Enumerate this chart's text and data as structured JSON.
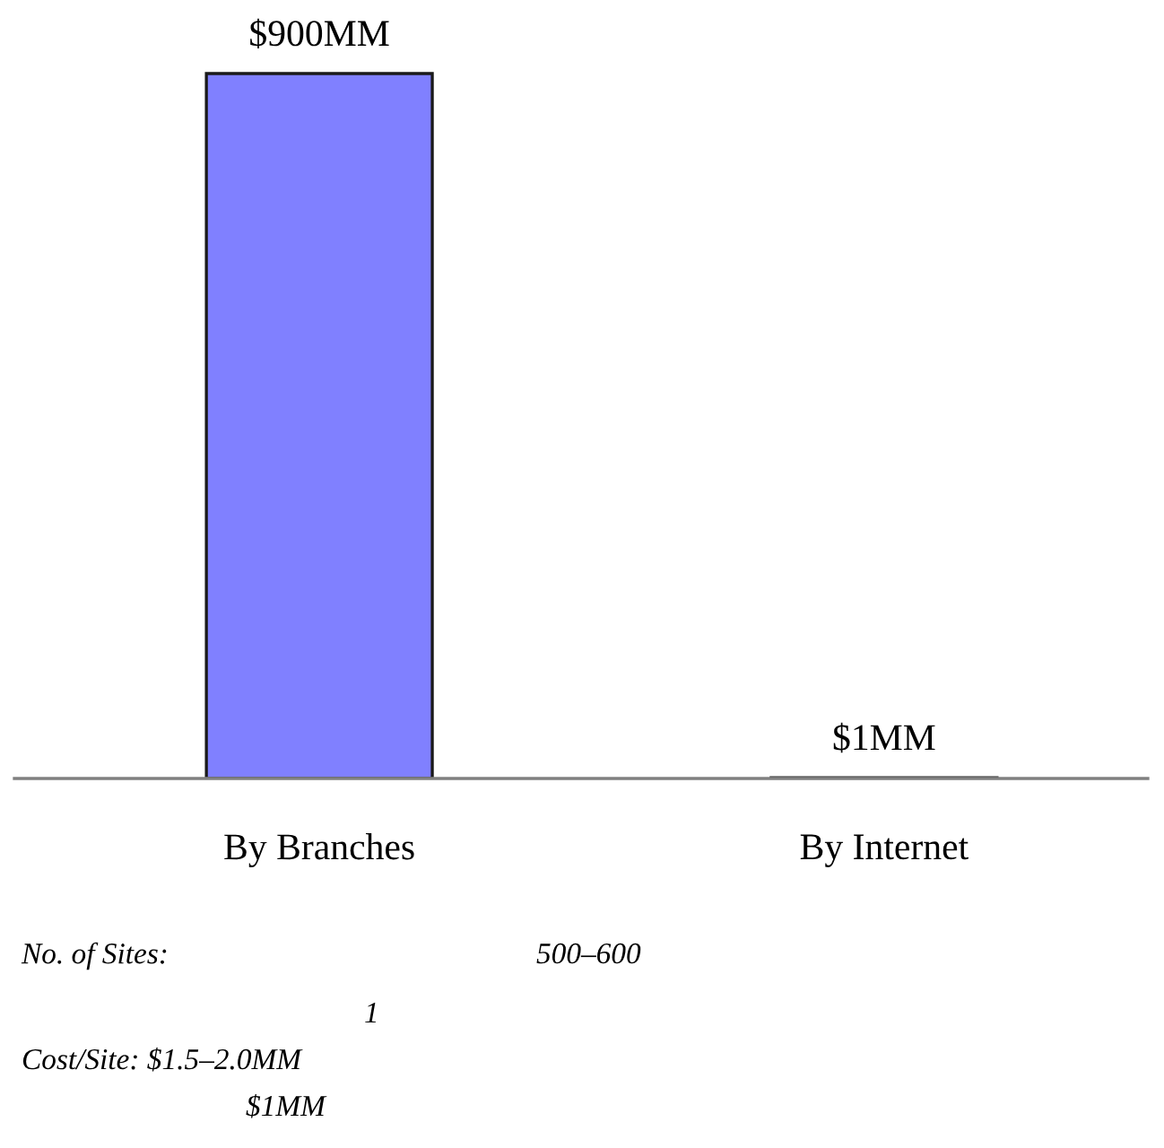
{
  "chart_data": {
    "type": "bar",
    "categories": [
      "By Branches",
      "By Internet"
    ],
    "values": [
      900,
      1
    ],
    "value_labels": [
      "$900MM",
      "$1MM"
    ],
    "color": "#8080ff",
    "annotations": [
      "No. of Sites:",
      "500–600",
      "1",
      "Cost/Site: $1.5–2.0MM",
      "$1MM"
    ]
  }
}
